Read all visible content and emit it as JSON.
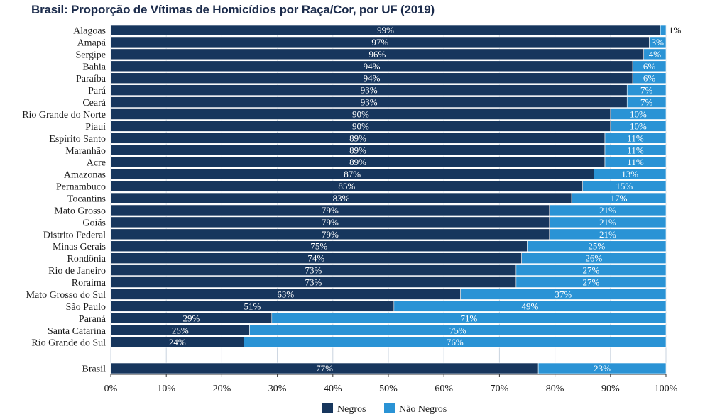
{
  "colors": {
    "negros": "#17365d",
    "nao_negros": "#2a93d5",
    "grid": "#c9d3df"
  },
  "chart_data": {
    "type": "bar",
    "orientation": "horizontal",
    "stacked": true,
    "title": "Brasil: Proporção de Vítimas de Homicídios por Raça/Cor, por UF (2019)",
    "categories": [
      "Alagoas",
      "Amapá",
      "Sergipe",
      "Bahia",
      "Paraíba",
      "Pará",
      "Ceará",
      "Rio Grande do Norte",
      "Piauí",
      "Espírito Santo",
      "Maranhão",
      "Acre",
      "Amazonas",
      "Pernambuco",
      "Tocantins",
      "Mato Grosso",
      "Goiás",
      "Distrito Federal",
      "Minas Gerais",
      "Rondônia",
      "Rio de Janeiro",
      "Roraima",
      "Mato Grosso do Sul",
      "São Paulo",
      "Paraná",
      "Santa Catarina",
      "Rio Grande do Sul"
    ],
    "series": [
      {
        "name": "Negros",
        "values": [
          99,
          97,
          96,
          94,
          94,
          93,
          93,
          90,
          90,
          89,
          89,
          89,
          87,
          85,
          83,
          79,
          79,
          79,
          75,
          74,
          73,
          73,
          63,
          51,
          29,
          25,
          24
        ]
      },
      {
        "name": "Não Negros",
        "values": [
          1,
          3,
          4,
          6,
          6,
          7,
          7,
          10,
          10,
          11,
          11,
          11,
          13,
          15,
          17,
          21,
          21,
          21,
          25,
          26,
          27,
          27,
          37,
          49,
          71,
          75,
          76
        ]
      }
    ],
    "total": {
      "category": "Brasil",
      "values": [
        77,
        23
      ]
    },
    "xlim": [
      0,
      100
    ],
    "xticks": [
      "0%",
      "10%",
      "20%",
      "30%",
      "40%",
      "50%",
      "60%",
      "70%",
      "80%",
      "90%",
      "100%"
    ],
    "grid": true,
    "legend": "bottom-center"
  }
}
